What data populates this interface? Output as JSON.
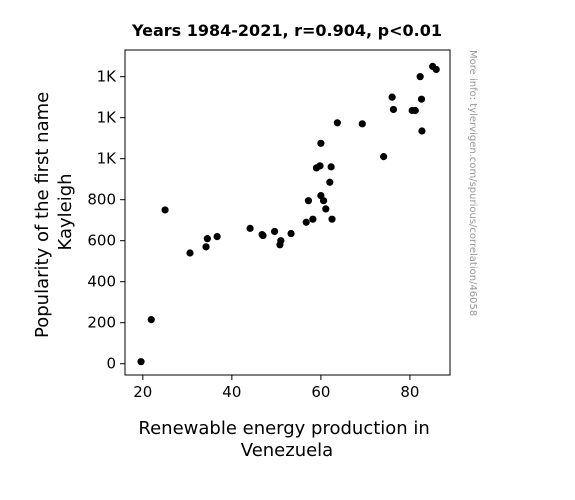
{
  "chart_data": {
    "type": "scatter",
    "title": "Years 1984-2021, r=0.904, p<0.01",
    "xlabel_lines": [
      "Renewable energy production in",
      "Venezuela"
    ],
    "ylabel_lines": [
      "Popularity of the first name",
      "Kayleigh"
    ],
    "watermark": "More info: tylervigen.com/spurious/correlation/46058",
    "xlim": [
      16,
      89
    ],
    "ylim": [
      -55,
      1530
    ],
    "x_ticks": [
      {
        "value": 20,
        "label": "20"
      },
      {
        "value": 40,
        "label": "40"
      },
      {
        "value": 60,
        "label": "60"
      },
      {
        "value": 80,
        "label": "80"
      }
    ],
    "y_ticks": [
      {
        "value": 0,
        "label": "0"
      },
      {
        "value": 200,
        "label": "200"
      },
      {
        "value": 400,
        "label": "400"
      },
      {
        "value": 600,
        "label": "600"
      },
      {
        "value": 800,
        "label": "800"
      },
      {
        "value": 1000,
        "label": "1K"
      },
      {
        "value": 1200,
        "label": "1K"
      },
      {
        "value": 1400,
        "label": "1K"
      }
    ],
    "marker_color": "#000000",
    "points": [
      {
        "x": 19.6,
        "y": 10
      },
      {
        "x": 21.9,
        "y": 215
      },
      {
        "x": 25.0,
        "y": 750
      },
      {
        "x": 30.6,
        "y": 540
      },
      {
        "x": 34.2,
        "y": 570
      },
      {
        "x": 34.5,
        "y": 610
      },
      {
        "x": 36.7,
        "y": 620
      },
      {
        "x": 44.1,
        "y": 660
      },
      {
        "x": 46.8,
        "y": 630
      },
      {
        "x": 47.0,
        "y": 625
      },
      {
        "x": 49.6,
        "y": 645
      },
      {
        "x": 50.8,
        "y": 580
      },
      {
        "x": 51.0,
        "y": 600
      },
      {
        "x": 53.3,
        "y": 635
      },
      {
        "x": 56.7,
        "y": 690
      },
      {
        "x": 57.2,
        "y": 795
      },
      {
        "x": 58.2,
        "y": 705
      },
      {
        "x": 59.0,
        "y": 955
      },
      {
        "x": 59.8,
        "y": 965
      },
      {
        "x": 60.0,
        "y": 820
      },
      {
        "x": 60.0,
        "y": 1075
      },
      {
        "x": 60.6,
        "y": 795
      },
      {
        "x": 61.1,
        "y": 755
      },
      {
        "x": 62.0,
        "y": 885
      },
      {
        "x": 62.3,
        "y": 960
      },
      {
        "x": 62.5,
        "y": 705
      },
      {
        "x": 63.7,
        "y": 1175
      },
      {
        "x": 69.3,
        "y": 1170
      },
      {
        "x": 74.1,
        "y": 1010
      },
      {
        "x": 76.0,
        "y": 1300
      },
      {
        "x": 76.3,
        "y": 1240
      },
      {
        "x": 80.5,
        "y": 1235
      },
      {
        "x": 81.2,
        "y": 1235
      },
      {
        "x": 82.3,
        "y": 1400
      },
      {
        "x": 82.6,
        "y": 1290
      },
      {
        "x": 82.7,
        "y": 1135
      },
      {
        "x": 85.1,
        "y": 1450
      },
      {
        "x": 85.9,
        "y": 1435
      }
    ]
  }
}
